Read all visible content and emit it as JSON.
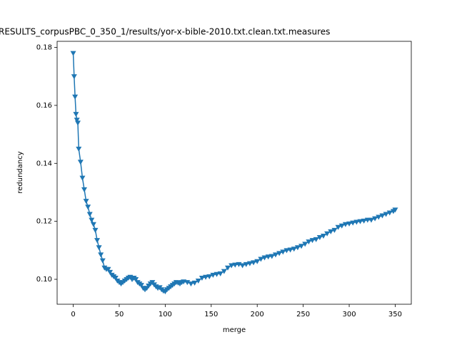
{
  "chart_data": {
    "type": "line",
    "title": "RESULTS_corpusPBC_0_350_1/results/yor-x-bible-2010.txt.clean.txt.measures",
    "x_label": "merge",
    "y_label": "redundancy",
    "xlim": [
      -17.5,
      367.5
    ],
    "ylim": [
      0.0914,
      0.1821
    ],
    "xticks": [
      0,
      50,
      100,
      150,
      200,
      250,
      300,
      350
    ],
    "yticks": [
      {
        "value": 0.1,
        "label": "0.10"
      },
      {
        "value": 0.12,
        "label": "0.12"
      },
      {
        "value": 0.14,
        "label": "0.14"
      },
      {
        "value": 0.16,
        "label": "0.16"
      },
      {
        "value": 0.18,
        "label": "0.18"
      }
    ],
    "marker": "triangle-down",
    "series": [
      {
        "color": "#1f77b4",
        "x": [
          0,
          1,
          2,
          3,
          4,
          5,
          6,
          8,
          10,
          12,
          14,
          16,
          18,
          20,
          22,
          24,
          26,
          28,
          30,
          32,
          34,
          36,
          38,
          40,
          42,
          44,
          46,
          48,
          50,
          52,
          54,
          56,
          58,
          60,
          62,
          64,
          66,
          68,
          70,
          72,
          74,
          76,
          78,
          80,
          82,
          84,
          86,
          88,
          90,
          92,
          94,
          96,
          98,
          100,
          102,
          104,
          106,
          108,
          110,
          112,
          114,
          116,
          118,
          120,
          124,
          128,
          132,
          136,
          140,
          144,
          148,
          152,
          156,
          160,
          164,
          168,
          172,
          176,
          180,
          184,
          188,
          192,
          196,
          200,
          204,
          208,
          212,
          216,
          220,
          224,
          228,
          232,
          236,
          240,
          244,
          248,
          252,
          256,
          260,
          264,
          268,
          272,
          276,
          280,
          284,
          288,
          292,
          296,
          300,
          304,
          308,
          312,
          316,
          320,
          324,
          328,
          332,
          336,
          340,
          344,
          348,
          350
        ],
        "values": [
          0.178,
          0.17,
          0.163,
          0.157,
          0.155,
          0.154,
          0.145,
          0.1405,
          0.135,
          0.131,
          0.127,
          0.125,
          0.1225,
          0.1205,
          0.119,
          0.117,
          0.1135,
          0.111,
          0.1085,
          0.1065,
          0.104,
          0.1035,
          0.1035,
          0.1025,
          0.1015,
          0.101,
          0.1005,
          0.0995,
          0.099,
          0.0985,
          0.099,
          0.0995,
          0.1,
          0.1005,
          0.1008,
          0.1,
          0.1005,
          0.1,
          0.099,
          0.0985,
          0.098,
          0.097,
          0.0965,
          0.097,
          0.0978,
          0.0985,
          0.099,
          0.0982,
          0.0975,
          0.097,
          0.0972,
          0.0965,
          0.096,
          0.0958,
          0.0965,
          0.097,
          0.0975,
          0.098,
          0.0985,
          0.099,
          0.0988,
          0.0985,
          0.099,
          0.0992,
          0.099,
          0.0985,
          0.0988,
          0.0995,
          0.1005,
          0.1008,
          0.101,
          0.1015,
          0.1018,
          0.102,
          0.1028,
          0.104,
          0.1048,
          0.105,
          0.1052,
          0.1048,
          0.1052,
          0.1055,
          0.1058,
          0.1062,
          0.107,
          0.1075,
          0.1078,
          0.108,
          0.1085,
          0.109,
          0.1095,
          0.11,
          0.1102,
          0.1105,
          0.111,
          0.1115,
          0.1122,
          0.113,
          0.1135,
          0.1138,
          0.1145,
          0.115,
          0.1158,
          0.1165,
          0.117,
          0.118,
          0.1185,
          0.119,
          0.1192,
          0.1195,
          0.1198,
          0.12,
          0.1202,
          0.1205,
          0.1205,
          0.121,
          0.1215,
          0.122,
          0.1225,
          0.123,
          0.1235,
          0.124
        ]
      }
    ]
  }
}
